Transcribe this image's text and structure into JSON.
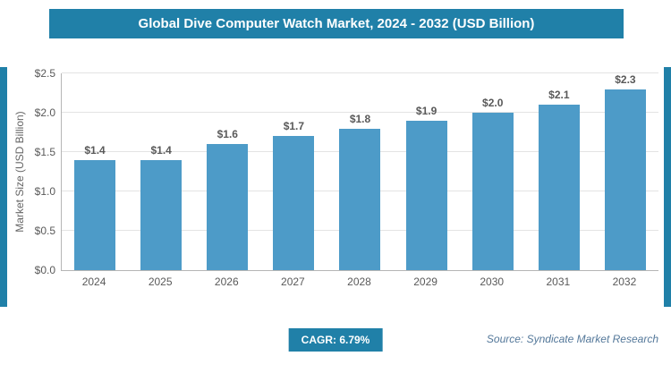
{
  "header": {
    "title": "Global Dive Computer Watch Market, 2024 - 2032 (USD Billion)"
  },
  "chart_data": {
    "type": "bar",
    "title": "Global Dive Computer Watch Market, 2024 - 2032 (USD Billion)",
    "categories": [
      "2024",
      "2025",
      "2026",
      "2027",
      "2028",
      "2029",
      "2030",
      "2031",
      "2032"
    ],
    "values": [
      1.4,
      1.4,
      1.6,
      1.7,
      1.8,
      1.9,
      2.0,
      2.1,
      2.3
    ],
    "bar_labels": [
      "$1.4",
      "$1.4",
      "$1.6",
      "$1.7",
      "$1.8",
      "$1.9",
      "$2.0",
      "$2.1",
      "$2.3"
    ],
    "xlabel": "",
    "ylabel": "Market Size (USD Billion)",
    "ylim": [
      0,
      2.5
    ],
    "ytick_step": 0.5,
    "ytick_labels": [
      "$0.0",
      "$0.5",
      "$1.0",
      "$1.5",
      "$2.0",
      "$2.5"
    ],
    "grid": true,
    "legend": "none"
  },
  "footer": {
    "cagr_label": "CAGR: 6.79%",
    "source": "Source: Syndicate Market Research"
  },
  "colors": {
    "accent": "#2080a8",
    "bar": "#4d9bc8",
    "source": "#54789a"
  }
}
